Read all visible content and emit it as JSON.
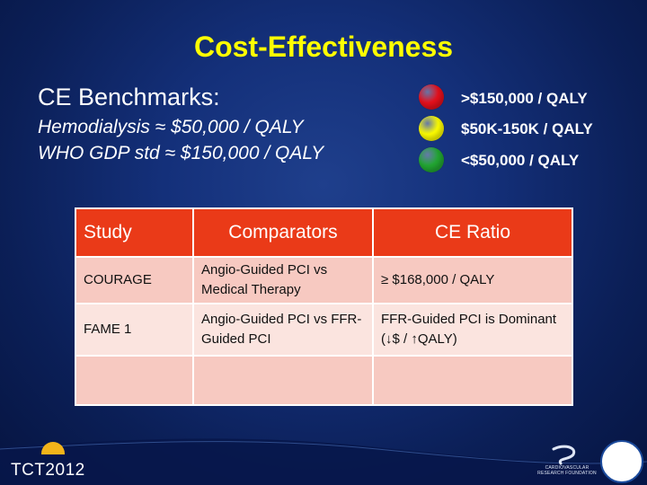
{
  "title": "Cost-Effectiveness",
  "benchmarks": {
    "heading": "CE Benchmarks:",
    "lines": [
      "Hemodialysis ≈ $50,000 / QALY",
      "WHO GDP std ≈ $150,000 / QALY"
    ]
  },
  "legend": [
    {
      "color": "#e8101c",
      "label": ">$150,000 / QALY"
    },
    {
      "color": "#ffff00",
      "label": "$50K-150K / QALY"
    },
    {
      "color": "#22a832",
      "label": "<$50,000 / QALY"
    }
  ],
  "table": {
    "headers": [
      "Study",
      "Comparators",
      "CE Ratio"
    ],
    "rows": [
      [
        "COURAGE",
        "Angio-Guided PCI vs Medical Therapy",
        "≥ $168,000 / QALY"
      ],
      [
        "FAME 1",
        "Angio-Guided PCI vs FFR-Guided PCI",
        "FFR-Guided PCI is Dominant (↓$ / ↑QALY)"
      ],
      [
        "",
        "",
        ""
      ]
    ]
  },
  "footer": {
    "logo_text": "TCT2012",
    "sponsor_text": "CARDIOVASCULAR RESEARCH FOUNDATION"
  }
}
